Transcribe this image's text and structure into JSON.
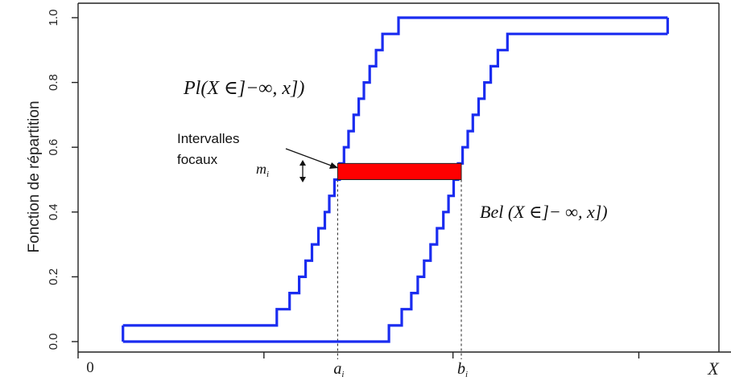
{
  "chart_data": {
    "type": "line",
    "ylabel": "Fonction de répartition",
    "xlabel": "X",
    "ylim": [
      0,
      1
    ],
    "yticks": [
      0.0,
      0.2,
      0.4,
      0.6,
      0.8,
      1.0
    ],
    "ytick_labels": [
      "0.0",
      "0.2",
      "0.4",
      "0.6",
      "0.8",
      "1.0"
    ],
    "x_origin_label": "0",
    "x_marked_labels": [
      {
        "label": "a",
        "sub": "i",
        "x": 0.405
      },
      {
        "label": "b",
        "sub": "i",
        "x": 0.598
      }
    ],
    "series": [
      {
        "name": "Pl(X ∈ ]−∞, x])",
        "color": "#1a2cf0",
        "x": [
          0.07,
          0.31,
          0.31,
          0.33,
          0.33,
          0.345,
          0.345,
          0.355,
          0.355,
          0.365,
          0.365,
          0.375,
          0.375,
          0.385,
          0.385,
          0.392,
          0.392,
          0.4,
          0.4,
          0.408,
          0.408,
          0.415,
          0.415,
          0.422,
          0.422,
          0.43,
          0.43,
          0.438,
          0.438,
          0.446,
          0.446,
          0.455,
          0.455,
          0.465,
          0.465,
          0.475,
          0.475,
          0.487,
          0.487,
          0.5,
          0.5,
          0.92
        ],
        "y": [
          0.05,
          0.05,
          0.1,
          0.1,
          0.15,
          0.15,
          0.2,
          0.2,
          0.25,
          0.25,
          0.3,
          0.3,
          0.35,
          0.35,
          0.4,
          0.4,
          0.45,
          0.45,
          0.5,
          0.5,
          0.55,
          0.55,
          0.6,
          0.6,
          0.65,
          0.65,
          0.7,
          0.7,
          0.75,
          0.75,
          0.8,
          0.8,
          0.85,
          0.85,
          0.9,
          0.9,
          0.95,
          0.95,
          0.95,
          0.95,
          1.0,
          1.0
        ]
      },
      {
        "name": "Bel (X ∈ ]− ∞, x])",
        "color": "#1a2cf0",
        "x": [
          0.07,
          0.485,
          0.485,
          0.505,
          0.505,
          0.52,
          0.52,
          0.53,
          0.53,
          0.54,
          0.54,
          0.55,
          0.55,
          0.56,
          0.56,
          0.57,
          0.57,
          0.578,
          0.578,
          0.586,
          0.586,
          0.593,
          0.593,
          0.6,
          0.6,
          0.608,
          0.608,
          0.616,
          0.616,
          0.625,
          0.625,
          0.634,
          0.634,
          0.644,
          0.644,
          0.655,
          0.655,
          0.67,
          0.67,
          0.685,
          0.685,
          0.92
        ],
        "y": [
          0.0,
          0.0,
          0.05,
          0.05,
          0.1,
          0.1,
          0.15,
          0.15,
          0.2,
          0.2,
          0.25,
          0.25,
          0.3,
          0.3,
          0.35,
          0.35,
          0.4,
          0.4,
          0.45,
          0.45,
          0.5,
          0.5,
          0.55,
          0.55,
          0.6,
          0.6,
          0.65,
          0.65,
          0.7,
          0.7,
          0.75,
          0.75,
          0.8,
          0.8,
          0.85,
          0.85,
          0.9,
          0.9,
          0.95,
          0.95,
          0.95,
          0.95
        ]
      }
    ],
    "focal_interval": {
      "x_start": 0.405,
      "x_end": 0.598,
      "y_low": 0.5,
      "y_high": 0.55,
      "fill": "#ff0000",
      "label": "m",
      "label_sub": "i"
    },
    "annotations": {
      "pl_label": "Pl(X ∈]−∞, x])",
      "bel_label": "Bel (X ∈]− ∞, x])",
      "focal_text_line1": "Intervalles",
      "focal_text_line2": "focaux"
    },
    "grid": false
  }
}
